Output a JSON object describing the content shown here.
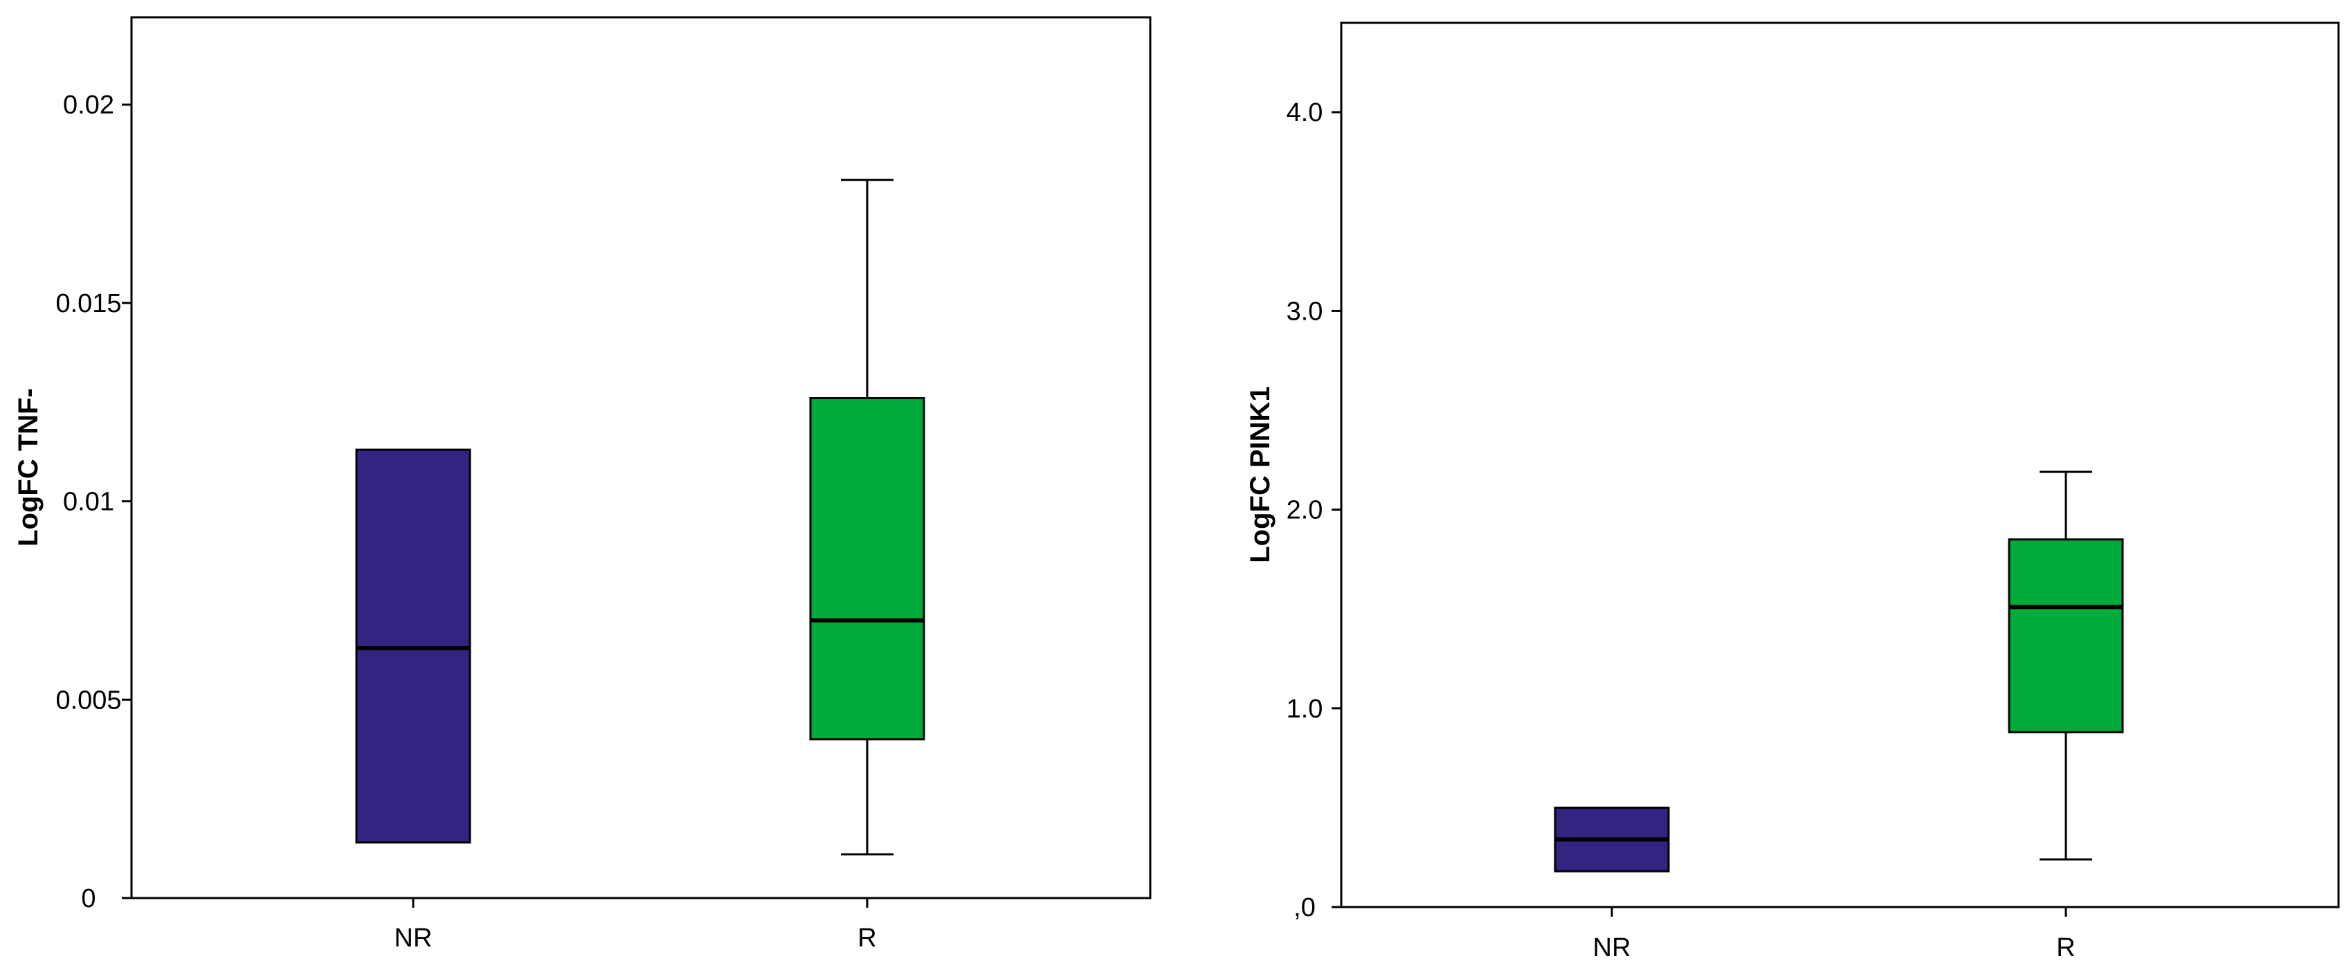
{
  "chart_data": [
    {
      "type": "box",
      "title": "",
      "xlabel": "",
      "ylabel": "LogFC TNF-",
      "ylim": [
        0,
        0.0222
      ],
      "yticks": [
        {
          "value": 0,
          "label": "0"
        },
        {
          "value": 0.005,
          "label": "0.005"
        },
        {
          "value": 0.01,
          "label": "0.01"
        },
        {
          "value": 0.015,
          "label": "0.015"
        },
        {
          "value": 0.02,
          "label": "0.02"
        }
      ],
      "categories": [
        "NR",
        "R"
      ],
      "boxes": [
        {
          "category": "NR",
          "min": 0.0014,
          "q1": 0.0014,
          "median": 0.0063,
          "q3": 0.0113,
          "max": 0.0113,
          "color": "#352381"
        },
        {
          "category": "R",
          "min": 0.0011,
          "q1": 0.004,
          "median": 0.007,
          "q3": 0.0126,
          "max": 0.0181,
          "color": "#00AB3C"
        }
      ],
      "grid": false
    },
    {
      "type": "box",
      "title": "",
      "xlabel": "",
      "ylabel": "LogFC PINK1",
      "ylim": [
        0,
        4.45
      ],
      "yticks": [
        {
          "value": 0,
          "label": ",0"
        },
        {
          "value": 1,
          "label": "1.0"
        },
        {
          "value": 2,
          "label": "2.0"
        },
        {
          "value": 3,
          "label": "3.0"
        },
        {
          "value": 4,
          "label": "4.0"
        }
      ],
      "categories": [
        "NR",
        "R"
      ],
      "boxes": [
        {
          "category": "NR",
          "min": 0.18,
          "q1": 0.18,
          "median": 0.34,
          "q3": 0.5,
          "max": 0.5,
          "color": "#352381"
        },
        {
          "category": "R",
          "min": 0.24,
          "q1": 0.88,
          "median": 1.51,
          "q3": 1.85,
          "max": 2.19,
          "color": "#00AB3C"
        }
      ],
      "grid": false
    }
  ]
}
